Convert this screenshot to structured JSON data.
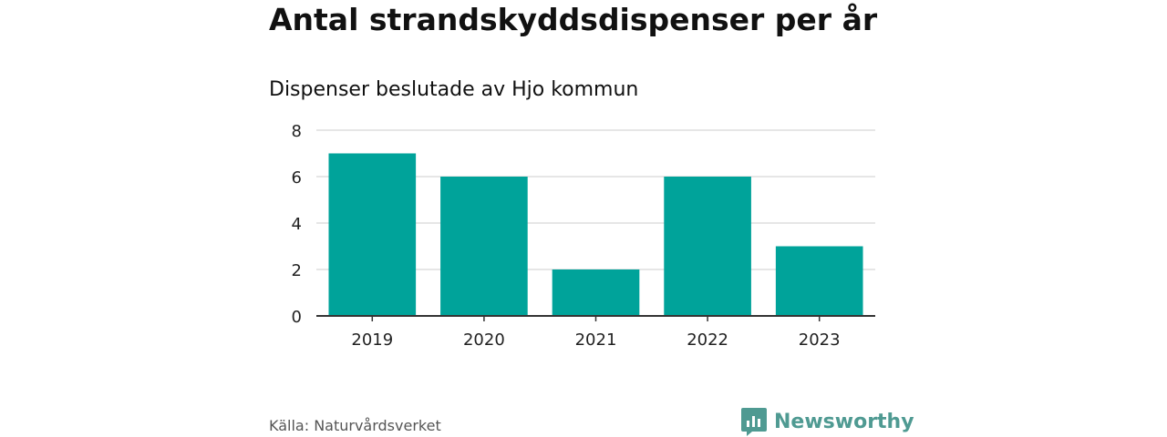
{
  "chart_data": {
    "type": "bar",
    "title": "Antal strandskyddsdispenser per år",
    "subtitle": "Dispenser beslutade av Hjo kommun",
    "categories": [
      "2019",
      "2020",
      "2021",
      "2022",
      "2023"
    ],
    "values": [
      7,
      6,
      2,
      6,
      3
    ],
    "xlabel": "",
    "ylabel": "",
    "ylim": [
      0,
      8
    ],
    "yticks": [
      0,
      2,
      4,
      6,
      8
    ],
    "grid": true,
    "bar_color": "#00a39a"
  },
  "source": "Källa: Naturvårdsverket",
  "brand": {
    "name": "Newsworthy",
    "icon": "newsworthy-logo-icon",
    "color": "#4f9a92"
  }
}
